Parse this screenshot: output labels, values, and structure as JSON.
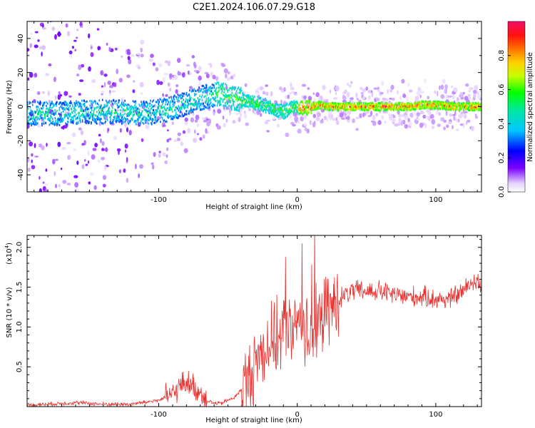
{
  "title": "C2E1.2024.106.07.29.G18",
  "chart_data": [
    {
      "type": "heatmap",
      "xlabel": "Height of straight line (km)",
      "ylabel": "Frequency (Hz)",
      "xlim": [
        -195,
        133
      ],
      "ylim": [
        -50,
        50
      ],
      "x_ticks": [
        -100,
        0,
        100
      ],
      "y_ticks": [
        -40,
        -20,
        0,
        20,
        40
      ],
      "colorbar": {
        "label": "Normalized spectral amplitude",
        "range": [
          0.0,
          1.0
        ],
        "ticks": [
          0.0,
          0.2,
          0.4,
          0.6,
          0.8
        ]
      },
      "ridge": {
        "x": [
          -195,
          -170,
          -150,
          -130,
          -110,
          -95,
          -80,
          -70,
          -60,
          -55,
          -50,
          -45,
          -40,
          -35,
          -30,
          -25,
          -20,
          -15,
          -10,
          -5,
          0,
          5,
          10,
          15,
          20,
          30,
          40,
          50,
          60,
          70,
          80,
          90,
          100,
          110,
          120,
          133
        ],
        "frequency": [
          -4,
          -4,
          -3,
          -3,
          -4,
          -2,
          2,
          5,
          7,
          8,
          5,
          5,
          4,
          3,
          2,
          1,
          0,
          -2,
          -3,
          -1,
          0,
          -1,
          0,
          1,
          0,
          0,
          0,
          0,
          0,
          0,
          0,
          1,
          1,
          0,
          0,
          0
        ]
      }
    },
    {
      "type": "line",
      "xlabel": "Height of straight line (km)",
      "ylabel": "SNR (10 * v/v)",
      "y_multiplier": "(x10",
      "y_multiplier_exp": "4",
      "y_multiplier_close": ")",
      "xlim": [
        -195,
        133
      ],
      "ylim": [
        0,
        2.15
      ],
      "x_ticks": [
        -100,
        0,
        100
      ],
      "y_ticks": [
        0.5,
        1.0,
        1.5,
        2.0
      ],
      "y_tick_labels": [
        "0.5",
        "1.0",
        "1.5",
        "2.0"
      ],
      "series": [
        {
          "color": "#e8302d",
          "x": [
            -195,
            -180,
            -160,
            -140,
            -120,
            -100,
            -90,
            -85,
            -80,
            -75,
            -70,
            -65,
            -60,
            -55,
            -50,
            -45,
            -40,
            -35,
            -30,
            -25,
            -20,
            -15,
            -10,
            -5,
            0,
            5,
            10,
            15,
            20,
            25,
            30,
            40,
            50,
            60,
            70,
            80,
            90,
            100,
            110,
            120,
            125,
            130,
            133
          ],
          "y": [
            0.02,
            0.03,
            0.05,
            0.03,
            0.03,
            0.08,
            0.15,
            0.25,
            0.32,
            0.25,
            0.18,
            0.08,
            0.04,
            0.04,
            0.08,
            0.12,
            0.22,
            0.35,
            0.55,
            0.72,
            0.8,
            0.85,
            0.95,
            1.0,
            0.95,
            0.9,
            0.95,
            1.05,
            1.15,
            1.25,
            1.35,
            1.45,
            1.45,
            1.45,
            1.4,
            1.38,
            1.38,
            1.35,
            1.35,
            1.45,
            1.55,
            1.6,
            1.5
          ]
        }
      ]
    }
  ]
}
